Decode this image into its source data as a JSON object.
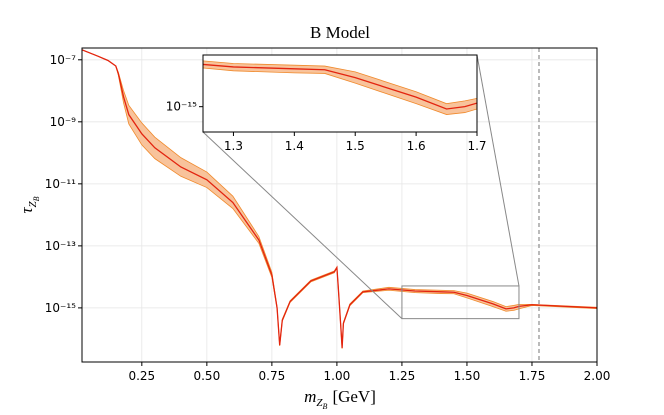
{
  "chart_data": {
    "type": "line",
    "title": "B Model",
    "xlabel": {
      "base": "m",
      "sub": "Z",
      "subsub": "B",
      "unit": "[GeV]"
    },
    "ylabel": {
      "base": "τ",
      "sub": "Z",
      "subsub": "B"
    },
    "log_y": true,
    "grid": true,
    "xlim": [
      0.02,
      2.0
    ],
    "ylim": [
      1.8e-17,
      2.4e-07
    ],
    "xticks": [
      0.25,
      {
        "value": 0.5,
        "label": "0.50"
      },
      0.75,
      {
        "value": 1.0,
        "label": "1.00"
      },
      1.25,
      {
        "value": 1.5,
        "label": "1.50"
      },
      1.75,
      {
        "value": 2.0,
        "label": "2.00"
      }
    ],
    "yticks": [
      {
        "value": 1e-07,
        "label": "10⁻⁷"
      },
      {
        "value": 1e-09,
        "label": "10⁻⁹"
      },
      {
        "value": 1e-11,
        "label": "10⁻¹¹"
      },
      {
        "value": 1e-13,
        "label": "10⁻¹³"
      },
      {
        "value": 1e-15,
        "label": "10⁻¹⁵"
      }
    ],
    "vline": 1.777,
    "x": [
      0.02,
      0.08,
      0.12,
      0.15,
      0.16,
      0.18,
      0.2,
      0.25,
      0.3,
      0.4,
      0.5,
      0.6,
      0.7,
      0.75,
      0.77,
      0.78,
      0.79,
      0.82,
      0.9,
      0.99,
      1.0,
      1.005,
      1.015,
      1.02,
      1.025,
      1.05,
      1.1,
      1.2,
      1.3,
      1.4,
      1.45,
      1.5,
      1.6,
      1.65,
      1.68,
      1.7,
      1.75,
      2.0
    ],
    "series": [
      {
        "color": "#e3240f",
        "values": [
          2.09e-07,
          1.32e-07,
          9.5e-08,
          6.3e-08,
          3.5e-08,
          6.3e-09,
          1.7e-09,
          4.1e-10,
          1.45e-10,
          3.5e-11,
          1.35e-11,
          2.5e-12,
          1.55e-13,
          1.15e-14,
          1e-15,
          6.3e-17,
          4e-16,
          1.6e-15,
          7.4e-15,
          1.45e-14,
          2e-14,
          5e-15,
          2.5e-16,
          5.1e-17,
          3.2e-16,
          1.26e-15,
          3.3e-15,
          4.1e-15,
          3.5e-15,
          3.3e-15,
          3.2e-15,
          2.5e-15,
          1.35e-15,
          9.3e-16,
          1e-15,
          1.12e-15,
          1.26e-15,
          1e-15
        ]
      }
    ],
    "band": {
      "color": "#f7b88a",
      "edge": "#f08a2c",
      "upper": [
        2.09e-07,
        1.32e-07,
        9.5e-08,
        6.3e-08,
        3.9e-08,
        1e-08,
        3.4e-09,
        9.2e-10,
        3.2e-10,
        7e-11,
        2.4e-11,
        4e-12,
        2e-13,
        1.4e-14,
        1.07e-15,
        6.8e-17,
        4.3e-16,
        1.7e-15,
        7.9e-15,
        1.55e-14,
        2.1e-14,
        5.4e-15,
        2.7e-16,
        5.5e-17,
        3.4e-16,
        1.35e-15,
        3.5e-15,
        4.6e-15,
        3.9e-15,
        3.7e-15,
        3.6e-15,
        3e-15,
        1.6e-15,
        1.1e-15,
        1.2e-15,
        1.3e-15,
        1.3e-15,
        1.05e-15
      ],
      "lower": [
        2.09e-07,
        1.32e-07,
        9.5e-08,
        6.3e-08,
        3.1e-08,
        4e-09,
        8.5e-10,
        1.8e-10,
        6.5e-11,
        1.75e-11,
        7.6e-12,
        1.6e-12,
        1.2e-13,
        9.6e-15,
        9.3e-16,
        5.9e-17,
        3.7e-16,
        1.5e-15,
        6.9e-15,
        1.35e-14,
        1.9e-14,
        4.7e-15,
        2.3e-16,
        4.8e-17,
        3e-16,
        1.18e-15,
        3.1e-15,
        3.7e-15,
        3.1e-15,
        2.9e-15,
        2.85e-15,
        2.1e-15,
        1.1e-15,
        7.8e-16,
        8.3e-16,
        9.3e-16,
        1.2e-15,
        9.5e-16
      ]
    },
    "inset": {
      "xlim": [
        1.25,
        1.7
      ],
      "ylim": [
        4.5e-16,
        5.1e-15
      ],
      "xticks": [
        1.3,
        1.4,
        1.5,
        1.6,
        1.7
      ],
      "yticks": [
        {
          "value": 1e-15,
          "label": "10⁻¹⁵"
        }
      ]
    }
  }
}
